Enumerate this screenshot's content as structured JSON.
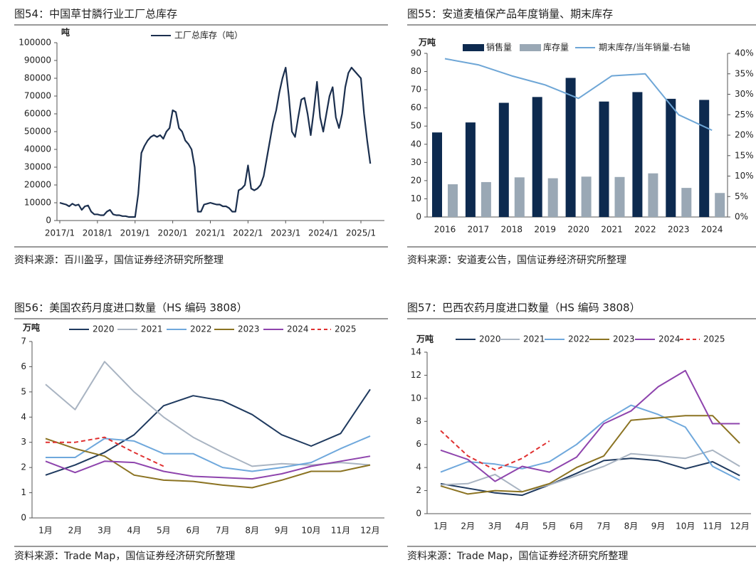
{
  "chart_data": [
    {
      "type": "line",
      "title": "图54：中国草甘膦行业工厂总库存",
      "source": "资料来源：百川盈孚，国信证券经济研究所整理",
      "y_label": "吨",
      "x": [
        "2017/1",
        "2017/2",
        "2017/3",
        "2017/4",
        "2017/5",
        "2017/6",
        "2017/7",
        "2017/8",
        "2017/9",
        "2017/10",
        "2017/11",
        "2017/12",
        "2018/1",
        "2018/2",
        "2018/3",
        "2018/4",
        "2018/5",
        "2018/6",
        "2018/7",
        "2018/8",
        "2018/9",
        "2018/10",
        "2018/11",
        "2018/12",
        "2019/1",
        "2019/2",
        "2019/3",
        "2019/4",
        "2019/5",
        "2019/6",
        "2019/7",
        "2019/8",
        "2019/9",
        "2019/10",
        "2019/11",
        "2019/12",
        "2020/1",
        "2020/2",
        "2020/3",
        "2020/4",
        "2020/5",
        "2020/6",
        "2020/7",
        "2020/8",
        "2020/9",
        "2020/10",
        "2020/11",
        "2020/12",
        "2021/1",
        "2021/2",
        "2021/3",
        "2021/4",
        "2021/5",
        "2021/6",
        "2021/7",
        "2021/8",
        "2021/9",
        "2021/10",
        "2021/11",
        "2021/12",
        "2022/1",
        "2022/2",
        "2022/3",
        "2022/4",
        "2022/5",
        "2022/6",
        "2022/7",
        "2022/8",
        "2022/9",
        "2022/10",
        "2022/11",
        "2022/12",
        "2023/1",
        "2023/2",
        "2023/3",
        "2023/4",
        "2023/5",
        "2023/6",
        "2023/7",
        "2023/8",
        "2023/9",
        "2023/10",
        "2023/11",
        "2023/12",
        "2024/1",
        "2024/2",
        "2024/3",
        "2024/4",
        "2024/5",
        "2024/6",
        "2024/7",
        "2024/8",
        "2024/9",
        "2024/10",
        "2024/11",
        "2024/12",
        "2025/1",
        "2025/2",
        "2025/3",
        "2025/4"
      ],
      "xticks": [
        "2017/1",
        "2018/1",
        "2019/1",
        "2020/1",
        "2021/1",
        "2022/1",
        "2023/1",
        "2024/1",
        "2025/1"
      ],
      "series": [
        {
          "name": "工厂总库存（吨）",
          "color": "#1b2f4e",
          "values": [
            10000,
            9500,
            9000,
            8000,
            9500,
            8500,
            9000,
            6000,
            8000,
            8500,
            5000,
            3500,
            3500,
            3000,
            3000,
            5000,
            6000,
            3500,
            3000,
            3000,
            2500,
            2500,
            2000,
            2000,
            2000,
            15000,
            38000,
            42000,
            45000,
            47000,
            48000,
            47000,
            48000,
            46000,
            50000,
            52000,
            62000,
            61000,
            52000,
            50000,
            45000,
            43000,
            40000,
            30000,
            5000,
            5000,
            9000,
            9500,
            10000,
            9500,
            9000,
            9000,
            8000,
            8000,
            7000,
            5000,
            5000,
            17000,
            18000,
            20000,
            31000,
            18000,
            17000,
            18000,
            20000,
            25000,
            35000,
            45000,
            55000,
            62000,
            72000,
            80000,
            86000,
            70000,
            50000,
            47000,
            58000,
            68000,
            69000,
            60000,
            48000,
            62000,
            78000,
            58000,
            50000,
            60000,
            70000,
            75000,
            58000,
            52000,
            60000,
            75000,
            83000,
            86000,
            84000,
            82000,
            80000,
            60000,
            45000,
            32000
          ]
        }
      ],
      "ylim": [
        0,
        100000
      ],
      "yticks": [
        0,
        10000,
        20000,
        30000,
        40000,
        50000,
        60000,
        70000,
        80000,
        90000,
        100000
      ]
    },
    {
      "type": "bar",
      "title": "图55：安道麦植保产品年度销量、期末库存",
      "source": "资料来源：安道麦公告，国信证券经济研究所整理",
      "y_label": "万吨",
      "categories": [
        "2016",
        "2017",
        "2018",
        "2019",
        "2020",
        "2021",
        "2022",
        "2023",
        "2024"
      ],
      "series": [
        {
          "name": "销售量",
          "color": "#0d2a4f",
          "values": [
            46.5,
            52,
            62.8,
            66,
            76.5,
            63.5,
            68.7,
            65,
            64.4
          ]
        },
        {
          "name": "库存量",
          "color": "#9aa8b5",
          "values": [
            18,
            19.2,
            21.8,
            21.3,
            22.2,
            22,
            24,
            16,
            13.2
          ]
        },
        {
          "name": "期末库存/当年销量-右轴",
          "color": "#6ea6d6",
          "type": "line",
          "axis": "y2",
          "values": [
            38.7,
            37.2,
            34.5,
            32.3,
            29,
            34.5,
            35,
            25,
            21.2
          ]
        }
      ],
      "ylim": [
        0,
        90
      ],
      "yticks": [
        0,
        10,
        20,
        30,
        40,
        50,
        60,
        70,
        80,
        90
      ],
      "y2lim": [
        0,
        40
      ],
      "y2ticks": [
        {
          "value": 0,
          "label": "0%"
        },
        {
          "value": 5,
          "label": "5%"
        },
        {
          "value": 10,
          "label": "10%"
        },
        {
          "value": 15,
          "label": "15%"
        },
        {
          "value": 20,
          "label": "20%"
        },
        {
          "value": 25,
          "label": "25%"
        },
        {
          "value": 30,
          "label": "30%"
        },
        {
          "value": 35,
          "label": "35%"
        },
        {
          "value": 40,
          "label": "40%"
        }
      ]
    },
    {
      "type": "line",
      "title": "图56：美国农药月度进口数量（HS 编码 3808）",
      "source": "资料来源：Trade Map，国信证券经济研究所整理",
      "y_label": "万吨",
      "categories": [
        "1月",
        "2月",
        "3月",
        "4月",
        "5月",
        "6月",
        "7月",
        "8月",
        "9月",
        "10月",
        "11月",
        "12月"
      ],
      "series": [
        {
          "name": "2020",
          "color": "#1f3a5f",
          "values": [
            1.7,
            2.1,
            2.6,
            3.3,
            4.45,
            4.85,
            4.65,
            4.1,
            3.3,
            2.85,
            3.35,
            5.1
          ]
        },
        {
          "name": "2021",
          "color": "#a9b4c2",
          "values": [
            5.3,
            4.3,
            6.2,
            5.0,
            4.0,
            3.2,
            2.6,
            2.05,
            2.15,
            2.1,
            2.2,
            2.1
          ]
        },
        {
          "name": "2022",
          "color": "#6fa8dc",
          "values": [
            2.4,
            2.4,
            3.15,
            3.05,
            2.55,
            2.55,
            2.0,
            1.85,
            2.0,
            2.2,
            2.75,
            3.25
          ]
        },
        {
          "name": "2023",
          "color": "#8b7322",
          "values": [
            3.15,
            2.75,
            2.45,
            1.7,
            1.5,
            1.45,
            1.3,
            1.2,
            1.5,
            1.85,
            1.85,
            2.1
          ]
        },
        {
          "name": "2024",
          "color": "#8e44ad",
          "values": [
            2.25,
            1.8,
            2.25,
            2.2,
            1.85,
            1.65,
            1.6,
            1.55,
            1.75,
            2.05,
            2.25,
            2.45
          ]
        },
        {
          "name": "2025",
          "color": "#e03030",
          "dash": true,
          "values": [
            3.0,
            3.0,
            3.2,
            2.6,
            2.05,
            null,
            null,
            null,
            null,
            null,
            null,
            null
          ]
        }
      ],
      "ylim": [
        0,
        7
      ],
      "yticks": [
        0,
        1,
        2,
        3,
        4,
        5,
        6,
        7
      ]
    },
    {
      "type": "line",
      "title": "图57：巴西农药月度进口数量（HS 编码 3808）",
      "source": "资料来源：Trade Map，国信证券经济研究所整理",
      "y_label": "万吨",
      "categories": [
        "1月",
        "2月",
        "3月",
        "4月",
        "5月",
        "6月",
        "7月",
        "8月",
        "9月",
        "10月",
        "11月",
        "12月"
      ],
      "series": [
        {
          "name": "2020",
          "color": "#1f3a5f",
          "values": [
            2.6,
            2.2,
            1.8,
            1.6,
            2.5,
            3.5,
            4.6,
            4.8,
            4.6,
            3.9,
            4.5,
            3.3
          ]
        },
        {
          "name": "2021",
          "color": "#a9b4c2",
          "values": [
            2.5,
            2.6,
            3.4,
            1.9,
            2.5,
            3.3,
            4.1,
            5.2,
            5.0,
            4.8,
            5.5,
            4.1
          ]
        },
        {
          "name": "2022",
          "color": "#6fa8dc",
          "values": [
            3.6,
            4.5,
            4.3,
            3.9,
            4.5,
            6.0,
            8.0,
            9.4,
            8.6,
            7.5,
            4.1,
            2.9
          ]
        },
        {
          "name": "2023",
          "color": "#8b7322",
          "values": [
            2.4,
            1.7,
            2.0,
            1.9,
            2.6,
            4.0,
            5.0,
            8.1,
            8.3,
            8.5,
            8.5,
            6.1
          ]
        },
        {
          "name": "2024",
          "color": "#8e44ad",
          "values": [
            5.5,
            4.7,
            2.8,
            4.1,
            3.6,
            4.9,
            7.8,
            8.9,
            11.0,
            12.4,
            7.8,
            7.8
          ]
        },
        {
          "name": "2025",
          "color": "#e03030",
          "dash": true,
          "values": [
            7.2,
            5.0,
            3.8,
            4.8,
            6.3,
            null,
            null,
            null,
            null,
            null,
            null,
            null
          ]
        }
      ],
      "ylim": [
        0,
        14
      ],
      "yticks": [
        0,
        2,
        4,
        6,
        8,
        10,
        12,
        14
      ]
    }
  ]
}
